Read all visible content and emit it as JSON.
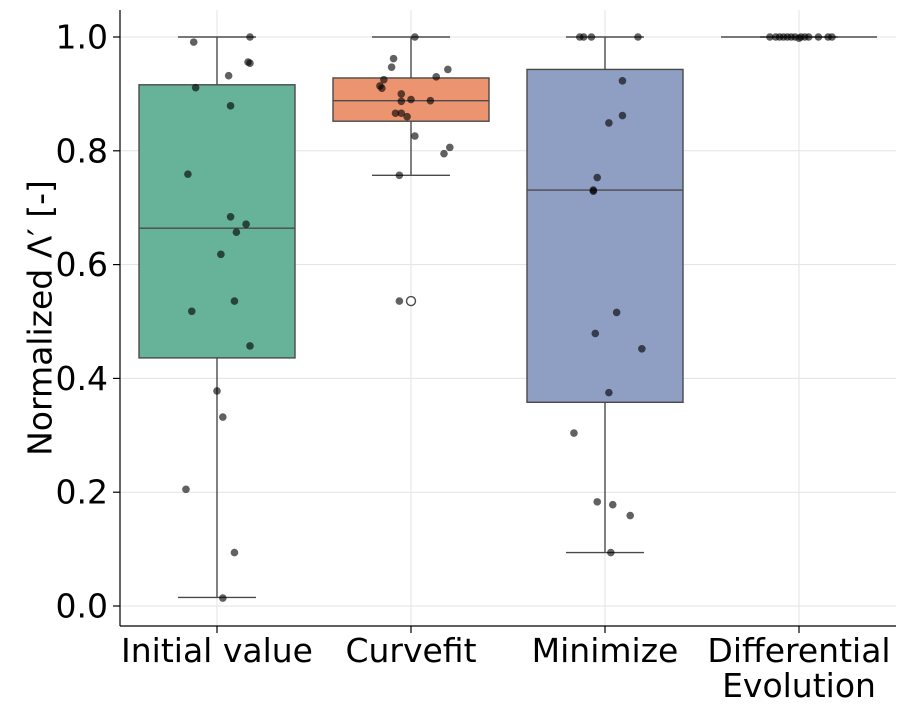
{
  "chart_data": {
    "type": "box",
    "title": "",
    "xlabel": "",
    "ylabel": "Normalized Λ′ [-]",
    "ylim": [
      -0.035,
      1.05
    ],
    "yticks": [
      "0.0",
      "0.2",
      "0.4",
      "0.6",
      "0.8",
      "1.0"
    ],
    "grid": true,
    "categories": [
      "Initial value",
      "Curvefit",
      "Minimize",
      "Differential Evolution"
    ],
    "category_lines": [
      [
        "Initial value"
      ],
      [
        "Curvefit"
      ],
      [
        "Minimize"
      ],
      [
        "Differential",
        "Evolution"
      ]
    ],
    "colors": [
      "#66b39a",
      "#ec936f",
      "#8f9fc4",
      "#66b39a"
    ],
    "boxes": [
      {
        "q1": 0.436,
        "median": 0.664,
        "q3": 0.916,
        "whisker_low": 0.015,
        "whisker_high": 1.0,
        "outliers": []
      },
      {
        "q1": 0.852,
        "median": 0.888,
        "q3": 0.928,
        "whisker_low": 0.757,
        "whisker_high": 1.0,
        "outliers": [
          0.536
        ]
      },
      {
        "q1": 0.358,
        "median": 0.731,
        "q3": 0.943,
        "whisker_low": 0.094,
        "whisker_high": 1.0,
        "outliers": []
      },
      {
        "q1": 1.0,
        "median": 1.0,
        "q3": 1.0,
        "whisker_low": 1.0,
        "whisker_high": 1.0,
        "outliers": []
      }
    ],
    "points": [
      [
        {
          "x": -0.12,
          "y": 0.991
        },
        {
          "x": 0.17,
          "y": 1.0
        },
        {
          "x": 0.16,
          "y": 0.956
        },
        {
          "x": 0.17,
          "y": 0.954
        },
        {
          "x": 0.06,
          "y": 0.932
        },
        {
          "x": -0.11,
          "y": 0.911
        },
        {
          "x": 0.07,
          "y": 0.879
        },
        {
          "x": -0.15,
          "y": 0.759
        },
        {
          "x": 0.07,
          "y": 0.684
        },
        {
          "x": 0.15,
          "y": 0.671
        },
        {
          "x": 0.1,
          "y": 0.657
        },
        {
          "x": 0.02,
          "y": 0.618
        },
        {
          "x": 0.09,
          "y": 0.536
        },
        {
          "x": -0.13,
          "y": 0.518
        },
        {
          "x": 0.17,
          "y": 0.457
        },
        {
          "x": 0.0,
          "y": 0.378
        },
        {
          "x": 0.03,
          "y": 0.332
        },
        {
          "x": -0.16,
          "y": 0.205
        },
        {
          "x": 0.09,
          "y": 0.094
        },
        {
          "x": 0.03,
          "y": 0.014
        }
      ],
      [
        {
          "x": 0.02,
          "y": 1.0
        },
        {
          "x": -0.09,
          "y": 0.962
        },
        {
          "x": -0.1,
          "y": 0.947
        },
        {
          "x": 0.19,
          "y": 0.943
        },
        {
          "x": 0.13,
          "y": 0.93
        },
        {
          "x": -0.14,
          "y": 0.925
        },
        {
          "x": -0.16,
          "y": 0.914
        },
        {
          "x": -0.15,
          "y": 0.91
        },
        {
          "x": -0.05,
          "y": 0.9
        },
        {
          "x": 0.0,
          "y": 0.89
        },
        {
          "x": -0.05,
          "y": 0.887
        },
        {
          "x": 0.1,
          "y": 0.888
        },
        {
          "x": -0.08,
          "y": 0.866
        },
        {
          "x": -0.05,
          "y": 0.866
        },
        {
          "x": -0.02,
          "y": 0.86
        },
        {
          "x": 0.02,
          "y": 0.826
        },
        {
          "x": 0.2,
          "y": 0.806
        },
        {
          "x": 0.17,
          "y": 0.795
        },
        {
          "x": -0.06,
          "y": 0.757
        },
        {
          "x": -0.06,
          "y": 0.536
        }
      ],
      [
        {
          "x": -0.13,
          "y": 1.0
        },
        {
          "x": -0.11,
          "y": 1.0
        },
        {
          "x": -0.07,
          "y": 1.0
        },
        {
          "x": 0.17,
          "y": 1.0
        },
        {
          "x": 0.09,
          "y": 0.923
        },
        {
          "x": 0.09,
          "y": 0.862
        },
        {
          "x": 0.02,
          "y": 0.849
        },
        {
          "x": -0.04,
          "y": 0.753
        },
        {
          "x": -0.06,
          "y": 0.731
        },
        {
          "x": -0.06,
          "y": 0.729
        },
        {
          "x": 0.06,
          "y": 0.516
        },
        {
          "x": -0.05,
          "y": 0.479
        },
        {
          "x": 0.19,
          "y": 0.452
        },
        {
          "x": 0.02,
          "y": 0.375
        },
        {
          "x": -0.16,
          "y": 0.304
        },
        {
          "x": -0.04,
          "y": 0.183
        },
        {
          "x": 0.04,
          "y": 0.178
        },
        {
          "x": 0.13,
          "y": 0.159
        },
        {
          "x": 0.03,
          "y": 0.094
        }
      ],
      [
        {
          "x": -0.15,
          "y": 1.0
        },
        {
          "x": -0.12,
          "y": 1.0
        },
        {
          "x": -0.1,
          "y": 1.0
        },
        {
          "x": -0.08,
          "y": 1.0
        },
        {
          "x": -0.06,
          "y": 1.0
        },
        {
          "x": -0.04,
          "y": 1.0
        },
        {
          "x": -0.02,
          "y": 1.0
        },
        {
          "x": 0.0,
          "y": 0.998
        },
        {
          "x": 0.01,
          "y": 1.0
        },
        {
          "x": 0.03,
          "y": 1.0
        },
        {
          "x": 0.05,
          "y": 1.0
        },
        {
          "x": 0.1,
          "y": 1.0
        },
        {
          "x": 0.15,
          "y": 1.0
        },
        {
          "x": 0.17,
          "y": 1.0
        }
      ]
    ]
  }
}
